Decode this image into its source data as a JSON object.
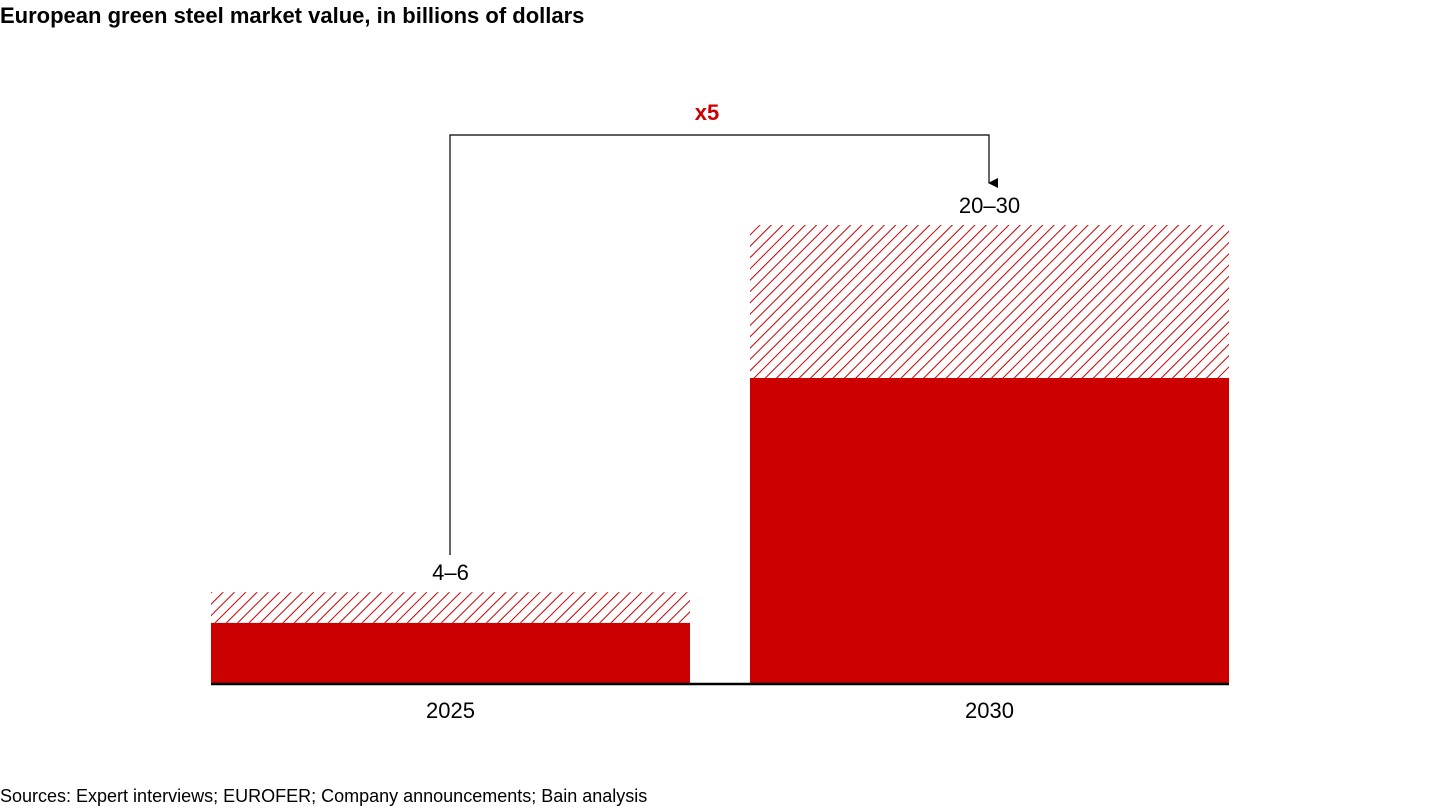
{
  "chart_data": {
    "type": "range_bar",
    "title": "European green steel market value, in billions of dollars",
    "categories": [
      "2025",
      "2030"
    ],
    "low": [
      4,
      20
    ],
    "high": [
      6,
      30
    ],
    "value_labels": [
      "4–6",
      "20–30"
    ],
    "color": "#cc0000",
    "range_pattern": "hatch",
    "ylim": [
      0,
      30
    ],
    "annotation": "x5",
    "source": "Sources: Expert interviews; EUROFER; Company announcements; Bain analysis"
  }
}
